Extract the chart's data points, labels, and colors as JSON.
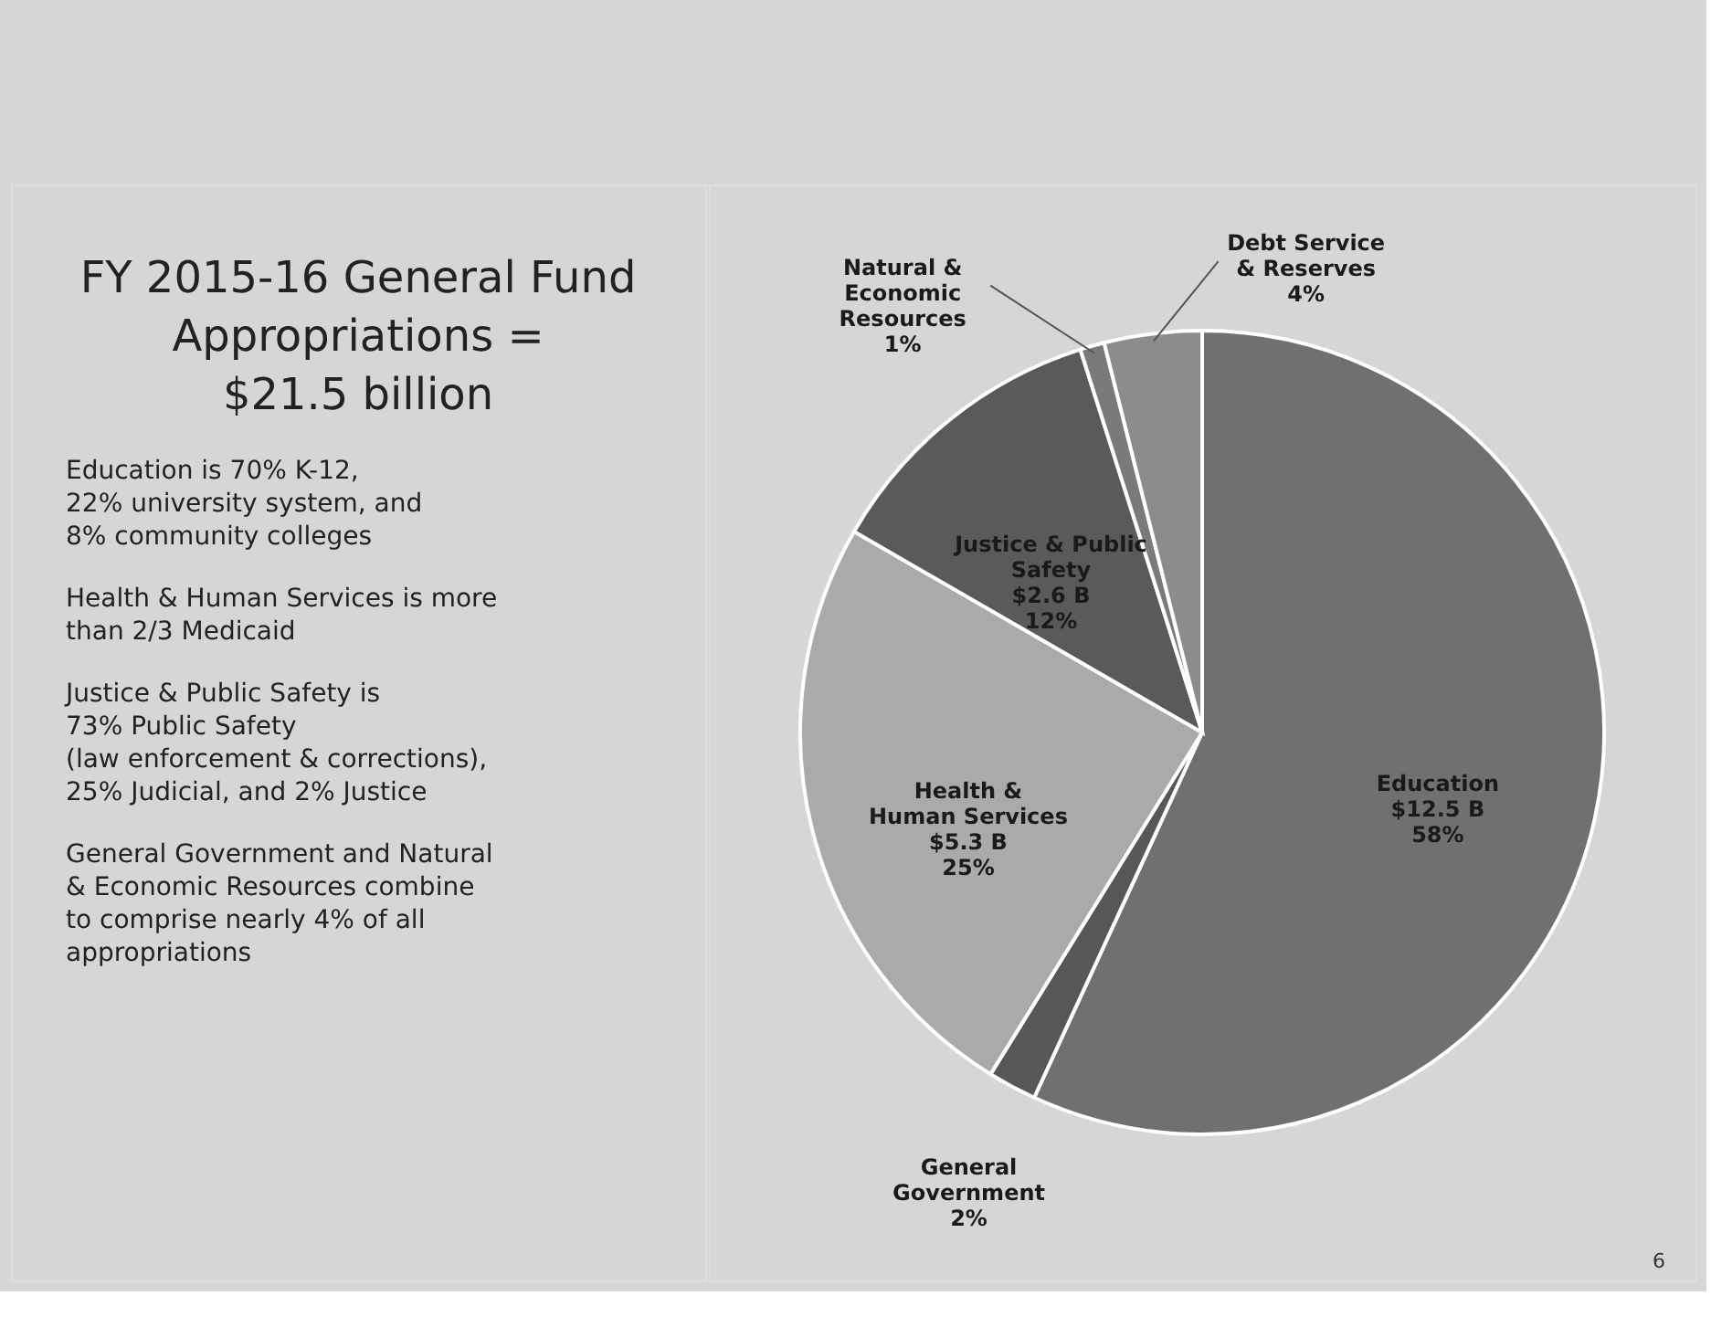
{
  "chart_data": {
    "type": "pie",
    "title": "FY 2015-16 General Fund\nAppropriations =\n$21.5 billion",
    "categories": [
      "Education",
      "General\nGovernment",
      "Health &\nHuman Services",
      "Justice & Public\nSafety",
      "Natural &\nEconomic\nResources",
      "Debt Service\n& Reserves"
    ],
    "values": [
      58,
      2,
      25,
      12,
      1,
      4
    ],
    "colors": [
      "#707070",
      "#575757",
      "#aaaaaa",
      "#5a5a5a",
      "#7a7a7a",
      "#8c8c8c"
    ],
    "value_labels": [
      "$12.5 B\n58%",
      "2%",
      "$5.3 B\n25%",
      "$2.6 B\n12%",
      "1%",
      "4%"
    ],
    "annotations": [
      "Education is 70% K-12,\n22% university system, and\n8% community colleges",
      "Health & Human Services is more\nthan 2/3 Medicaid",
      "Justice & Public Safety is\n73% Public Safety\n(law enforcement & corrections),\n25% Judicial, and 2% Justice",
      "General Government and Natural\n& Economic Resources combine\nto comprise nearly 4% of all\nappropriations",
      "6"
    ]
  }
}
